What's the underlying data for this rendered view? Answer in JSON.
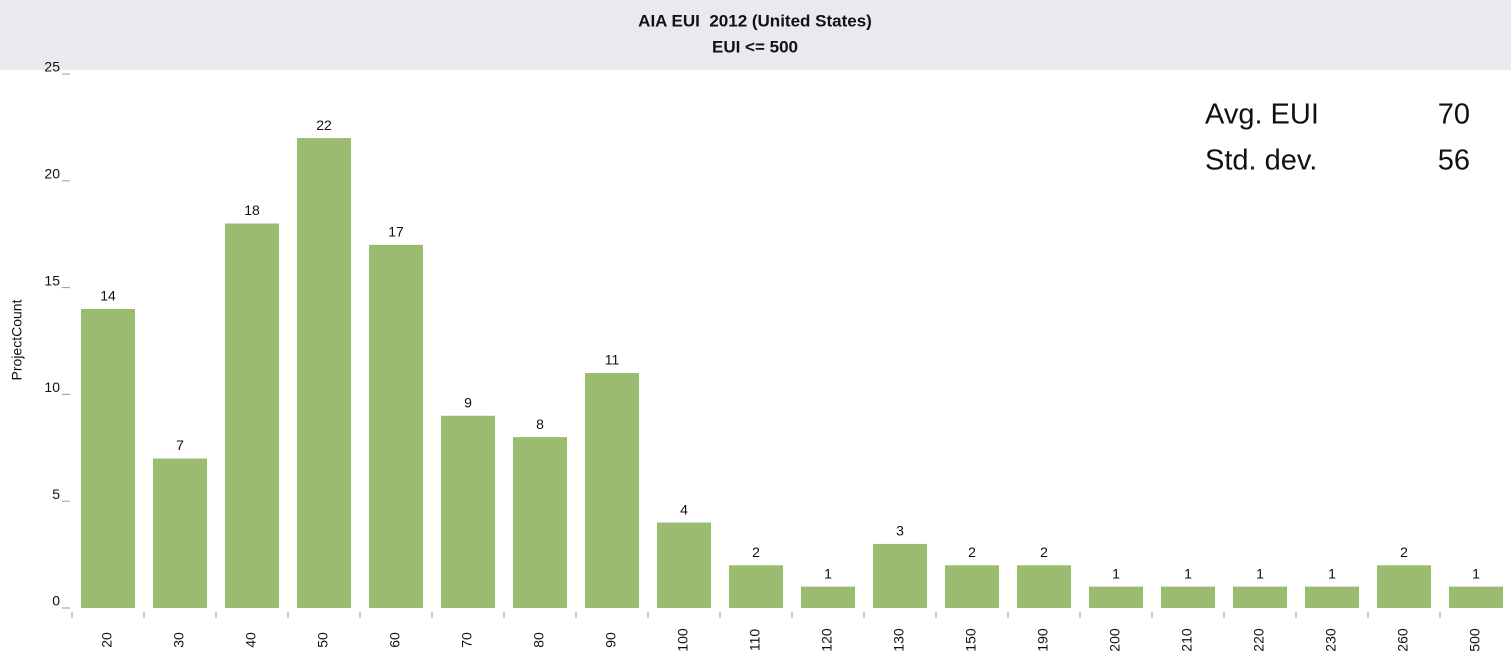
{
  "chart_data": {
    "type": "bar",
    "title": "AIA EUI  2012 (United States)",
    "subtitle": "EUI <= 500",
    "y_label": "ProjectCount",
    "categories": [
      "20",
      "30",
      "40",
      "50",
      "60",
      "70",
      "80",
      "90",
      "100",
      "110",
      "120",
      "130",
      "150",
      "190",
      "200",
      "210",
      "220",
      "230",
      "260",
      "500"
    ],
    "values": [
      14,
      7,
      18,
      22,
      17,
      9,
      8,
      11,
      4,
      2,
      1,
      3,
      2,
      2,
      1,
      1,
      1,
      1,
      2,
      1
    ],
    "color": "#9bbb70",
    "ylim": [
      0,
      25
    ],
    "yticks": [
      0,
      5,
      10,
      15,
      20,
      25
    ],
    "annotations": [
      {
        "label": "Avg. EUI",
        "value": 70
      },
      {
        "label": "Std. dev.",
        "value": 56
      }
    ]
  }
}
